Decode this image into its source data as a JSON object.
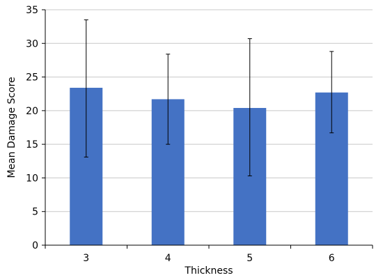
{
  "chart_data": {
    "type": "bar",
    "title": "",
    "xlabel": "Thickness",
    "ylabel": "Mean Damage Score",
    "categories": [
      "3",
      "4",
      "5",
      "6"
    ],
    "values": [
      23.4,
      21.7,
      20.4,
      22.7
    ],
    "error_low": [
      13.1,
      15.0,
      10.3,
      16.7
    ],
    "error_high": [
      33.5,
      28.4,
      30.7,
      28.8
    ],
    "ylim": [
      0,
      35
    ],
    "yticks": [
      0,
      5,
      10,
      15,
      20,
      25,
      30,
      35
    ],
    "grid": true,
    "bar_color": "#4472C4",
    "grid_color": "#C8C8C8"
  }
}
